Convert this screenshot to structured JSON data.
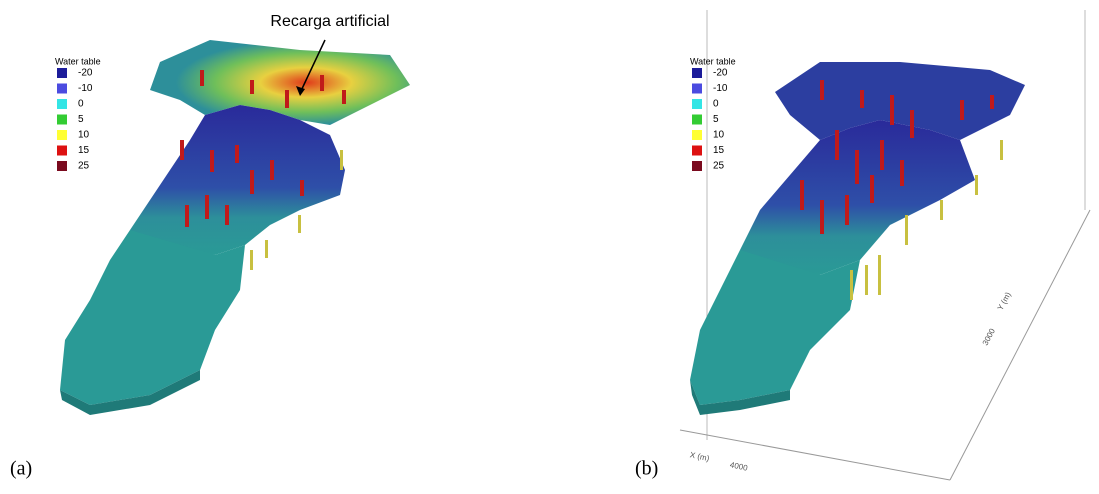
{
  "panels": [
    {
      "caption": "(a)",
      "annotation": "Recarga artificial",
      "legend": {
        "title": "Water table",
        "entries": [
          {
            "label": -20,
            "color": "#1c1c9a"
          },
          {
            "label": -10,
            "color": "#4b4be0"
          },
          {
            "label": 0,
            "color": "#33e5e5"
          },
          {
            "label": 5,
            "color": "#33cc33"
          },
          {
            "label": 10,
            "color": "#ffff33"
          },
          {
            "label": 15,
            "color": "#dd1111"
          },
          {
            "label": 25,
            "color": "#7a0a1e"
          }
        ]
      }
    },
    {
      "caption": "(b)",
      "legend": {
        "title": "Water table",
        "entries": [
          {
            "label": -20,
            "color": "#1c1c9a"
          },
          {
            "label": -10,
            "color": "#4b4be0"
          },
          {
            "label": 0,
            "color": "#33e5e5"
          },
          {
            "label": 5,
            "color": "#33cc33"
          },
          {
            "label": 10,
            "color": "#ffff33"
          },
          {
            "label": 15,
            "color": "#dd1111"
          },
          {
            "label": 25,
            "color": "#7a0a1e"
          }
        ]
      },
      "axis_labels": [
        "X (m)",
        4000,
        "Y (m)",
        3000
      ]
    }
  ]
}
